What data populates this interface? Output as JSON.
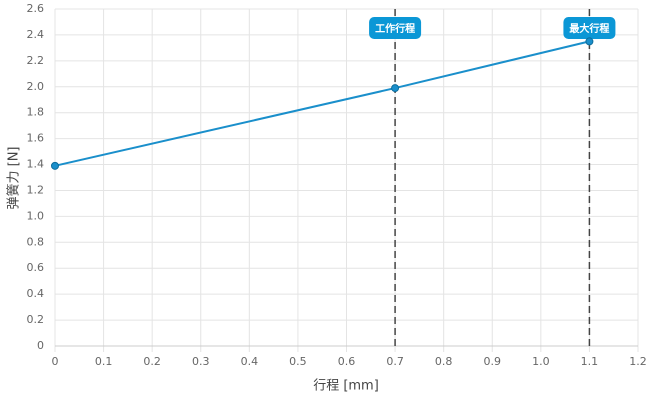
{
  "chart_data": {
    "type": "line",
    "x_label": "行程 [mm]",
    "y_label": "弹簧力 [N]",
    "series": [
      {
        "name": "弹簧力",
        "color": "#1a8fcb",
        "x": [
          0,
          0.7,
          1.1
        ],
        "values": [
          1.39,
          1.99,
          2.35
        ]
      }
    ],
    "xlim": [
      0,
      1.2
    ],
    "xticks": [
      0,
      0.1,
      0.2,
      0.3,
      0.4,
      0.5,
      0.6,
      0.7,
      0.8,
      0.9,
      {
        "value": 1,
        "label": "1.0"
      },
      1.1,
      1.2
    ],
    "ylim": [
      0,
      2.6
    ],
    "yticks": [
      0,
      0.2,
      0.4,
      0.6,
      0.8,
      {
        "value": 1,
        "label": "1.0"
      },
      1.2,
      1.4,
      1.6,
      1.8,
      {
        "value": 2,
        "label": "2.0"
      },
      2.2,
      2.4,
      2.6
    ],
    "grid": true,
    "annotations": [
      {
        "x": 0.7,
        "label": "工作行程",
        "color": "#0b97d6"
      },
      {
        "x": 1.1,
        "label": "最大行程",
        "color": "#0b97d6"
      }
    ]
  }
}
